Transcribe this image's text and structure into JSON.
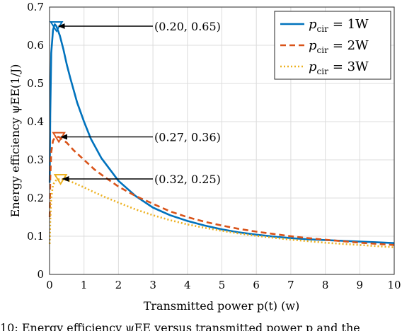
{
  "chart_data": {
    "type": "line",
    "title": "",
    "xlabel": "Transmitted power p(t) (w)",
    "ylabel": "Energy efficiency ψEE(1/J)",
    "xlim": [
      0,
      10
    ],
    "ylim": [
      0,
      0.7
    ],
    "xticks": [
      "0",
      "1",
      "2",
      "3",
      "4",
      "5",
      "6",
      "7",
      "8",
      "9",
      "10"
    ],
    "yticks": [
      "0",
      "0.1",
      "0.2",
      "0.3",
      "0.4",
      "0.5",
      "0.6",
      "0.7"
    ],
    "grid": true,
    "legend_position": "top-right",
    "series": [
      {
        "name": "p_cir = 1W",
        "legend_main": "p",
        "legend_sub": "cir",
        "legend_value": "= 1W",
        "color": "#0072BD",
        "style": "solid",
        "x": [
          0.005,
          0.02,
          0.05,
          0.1,
          0.15,
          0.2,
          0.3,
          0.4,
          0.5,
          0.6,
          0.8,
          1.0,
          1.2,
          1.5,
          2.0,
          2.5,
          3.0,
          3.5,
          4.0,
          4.5,
          5.0,
          5.5,
          6.0,
          6.5,
          7.0,
          7.5,
          8.0,
          8.5,
          9.0,
          9.5,
          10.0
        ],
        "y": [
          0.24,
          0.42,
          0.58,
          0.64,
          0.655,
          0.65,
          0.625,
          0.59,
          0.55,
          0.515,
          0.45,
          0.4,
          0.355,
          0.305,
          0.245,
          0.205,
          0.175,
          0.155,
          0.14,
          0.128,
          0.118,
          0.11,
          0.104,
          0.099,
          0.095,
          0.092,
          0.09,
          0.088,
          0.086,
          0.084,
          0.082
        ]
      },
      {
        "name": "p_cir = 2W",
        "legend_main": "p",
        "legend_sub": "cir",
        "legend_value": "= 2W",
        "color": "#D95319",
        "style": "dashed",
        "x": [
          0.005,
          0.02,
          0.05,
          0.1,
          0.15,
          0.2,
          0.27,
          0.35,
          0.5,
          0.7,
          1.0,
          1.3,
          1.6,
          2.0,
          2.5,
          3.0,
          3.5,
          4.0,
          4.5,
          5.0,
          5.5,
          6.0,
          6.5,
          7.0,
          7.5,
          8.0,
          8.5,
          9.0,
          9.5,
          10.0
        ],
        "y": [
          0.15,
          0.25,
          0.32,
          0.35,
          0.358,
          0.36,
          0.36,
          0.355,
          0.345,
          0.325,
          0.3,
          0.275,
          0.255,
          0.23,
          0.205,
          0.185,
          0.165,
          0.15,
          0.138,
          0.128,
          0.119,
          0.112,
          0.106,
          0.1,
          0.095,
          0.091,
          0.087,
          0.083,
          0.08,
          0.077
        ]
      },
      {
        "name": "p_cir = 3W",
        "legend_main": "p",
        "legend_sub": "cir",
        "legend_value": "= 3W",
        "color": "#EDB120",
        "style": "dotted",
        "x": [
          0.005,
          0.02,
          0.05,
          0.1,
          0.2,
          0.32,
          0.5,
          0.7,
          1.0,
          1.3,
          1.6,
          2.0,
          2.5,
          3.0,
          3.5,
          4.0,
          4.5,
          5.0,
          5.5,
          6.0,
          6.5,
          7.0,
          7.5,
          8.0,
          8.5,
          9.0,
          9.5,
          10.0
        ],
        "y": [
          0.08,
          0.14,
          0.2,
          0.235,
          0.248,
          0.25,
          0.247,
          0.24,
          0.228,
          0.215,
          0.203,
          0.188,
          0.17,
          0.155,
          0.142,
          0.131,
          0.122,
          0.114,
          0.107,
          0.101,
          0.096,
          0.091,
          0.087,
          0.083,
          0.08,
          0.077,
          0.074,
          0.071
        ]
      }
    ],
    "annotations": [
      {
        "text": "(0.20, 0.65)",
        "x": 0.2,
        "y": 0.65,
        "label_y": 0.65,
        "color": "#0072BD"
      },
      {
        "text": "(0.27, 0.36)",
        "x": 0.27,
        "y": 0.36,
        "label_y": 0.36,
        "color": "#D95319"
      },
      {
        "text": "(0.32, 0.25)",
        "x": 0.32,
        "y": 0.25,
        "label_y": 0.25,
        "color": "#EDB120"
      }
    ]
  },
  "caption": "10: Energy efficiency ψEE versus transmitted power p and the"
}
